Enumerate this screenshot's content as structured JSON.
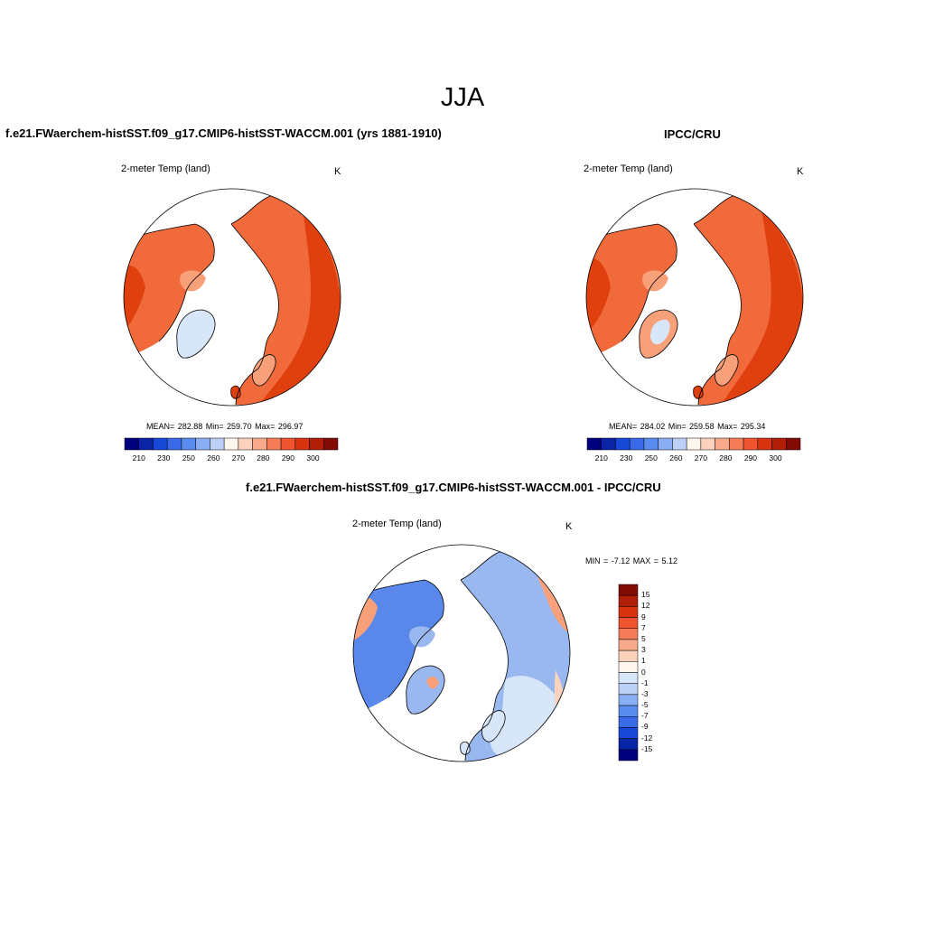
{
  "page": {
    "main_title": "JJA"
  },
  "panels": {
    "model": {
      "title": "f.e21.FWaerchem-histSST.f09_g17.CMIP6-histSST-WACCM.001 (yrs 1881-1910)",
      "variable": "2-meter Temp (land)",
      "units": "K",
      "stats": "MEAN= 282.88   Min= 259.70   Max= 296.97"
    },
    "obs": {
      "title": "IPCC/CRU",
      "variable": "2-meter Temp (land)",
      "units": "K",
      "stats": "MEAN= 284.02   Min= 259.58   Max= 295.34"
    },
    "diff": {
      "title": "f.e21.FWaerchem-histSST.f09_g17.CMIP6-histSST-WACCM.001 - IPCC/CRU",
      "variable": "2-meter Temp (land)",
      "units": "K",
      "stats": "MIN =  -7.12 MAX =   5.12"
    }
  },
  "colorbars": {
    "absolute": {
      "colors": [
        "#00007f",
        "#0a24a8",
        "#1848d8",
        "#3a6ae8",
        "#5a8cf0",
        "#8aaef4",
        "#bcd0f6",
        "#fff6ee",
        "#fcd2bc",
        "#f8aa8c",
        "#f47c58",
        "#ee5430",
        "#d83412",
        "#b01e08",
        "#820a04"
      ],
      "tick_labels": [
        "210",
        "230",
        "250",
        "260",
        "270",
        "280",
        "290",
        "300"
      ]
    },
    "difference": {
      "colors": [
        "#820a04",
        "#b01e08",
        "#d83412",
        "#ee5430",
        "#f47c58",
        "#f8aa8c",
        "#fcd2bc",
        "#fff6ee",
        "#d8e6fa",
        "#bcd0f6",
        "#8aaef4",
        "#5a8cf0",
        "#3a6ae8",
        "#1848d8",
        "#0a24a8",
        "#00007f"
      ],
      "tick_labels": [
        "15",
        "12",
        "9",
        "7",
        "5",
        "3",
        "1",
        "0",
        "-1",
        "-3",
        "-5",
        "-7",
        "-9",
        "-12",
        "-15"
      ]
    }
  },
  "map_colors": {
    "ocean": "#ffffff",
    "coast": "#000000",
    "warm_deep": "#e0400e",
    "warm_mid": "#f06a3c",
    "warm_light": "#f8a07a",
    "cool_light": "#d8e6fa",
    "cool_mid": "#9ab8f0",
    "cool_deep": "#5a88ea"
  }
}
